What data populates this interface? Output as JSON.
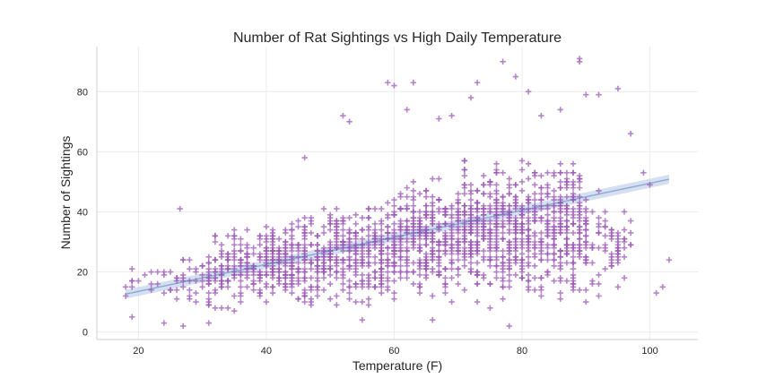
{
  "chart_data": {
    "type": "scatter",
    "title": "Number of Rat Sightings vs High Daily Temperature",
    "xlabel": "Temperature (F)",
    "ylabel": "Number of Sightings",
    "xlim": [
      13.5,
      107.5
    ],
    "ylim": [
      -2.5,
      95
    ],
    "x_ticks": [
      20,
      40,
      60,
      80,
      100
    ],
    "y_ticks": [
      0,
      20,
      40,
      60,
      80
    ],
    "grid": true,
    "legend": "none",
    "marker": "+",
    "marker_color": "#9b59b6",
    "fit_line": {
      "type": "linear_regression",
      "x_range": [
        18,
        103
      ],
      "intercept": 4.5,
      "slope": 0.45,
      "ci_halfwidth": 1.5,
      "color": "#4c72b0",
      "ci_color": "#b8c9e8"
    },
    "bands": [
      {
        "x": [
          18,
          30
        ],
        "y": [
          8,
          27
        ],
        "n": 40
      },
      {
        "x": [
          30,
          40
        ],
        "y": [
          4,
          38
        ],
        "n": 170
      },
      {
        "x": [
          40,
          50
        ],
        "y": [
          5,
          42
        ],
        "n": 260
      },
      {
        "x": [
          50,
          60
        ],
        "y": [
          6,
          46
        ],
        "n": 290
      },
      {
        "x": [
          60,
          70
        ],
        "y": [
          6,
          55
        ],
        "n": 330
      },
      {
        "x": [
          70,
          80
        ],
        "y": [
          6,
          62
        ],
        "n": 370
      },
      {
        "x": [
          80,
          90
        ],
        "y": [
          6,
          64
        ],
        "n": 330
      },
      {
        "x": [
          90,
          97
        ],
        "y": [
          8,
          52
        ],
        "n": 70
      }
    ],
    "outliers": [
      [
        18,
        12
      ],
      [
        19,
        5
      ],
      [
        24,
        3
      ],
      [
        26.5,
        41
      ],
      [
        27,
        2
      ],
      [
        31,
        3
      ],
      [
        33,
        8
      ],
      [
        46,
        58
      ],
      [
        52,
        72
      ],
      [
        53,
        70
      ],
      [
        59,
        83
      ],
      [
        60,
        82
      ],
      [
        62,
        74
      ],
      [
        63,
        83
      ],
      [
        67,
        71
      ],
      [
        69,
        72
      ],
      [
        72,
        78
      ],
      [
        73,
        83
      ],
      [
        77,
        90
      ],
      [
        79,
        85
      ],
      [
        81,
        80
      ],
      [
        83,
        72
      ],
      [
        86,
        74
      ],
      [
        89,
        90
      ],
      [
        89,
        91
      ],
      [
        90,
        79
      ],
      [
        92,
        79
      ],
      [
        95,
        81
      ],
      [
        97,
        66
      ],
      [
        99,
        53
      ],
      [
        100,
        49
      ],
      [
        101,
        13
      ],
      [
        102,
        15
      ],
      [
        103,
        24
      ],
      [
        78,
        2
      ],
      [
        75,
        8
      ],
      [
        66,
        4
      ],
      [
        55,
        4
      ],
      [
        92,
        12
      ],
      [
        94,
        25
      ],
      [
        97,
        37
      ]
    ]
  }
}
